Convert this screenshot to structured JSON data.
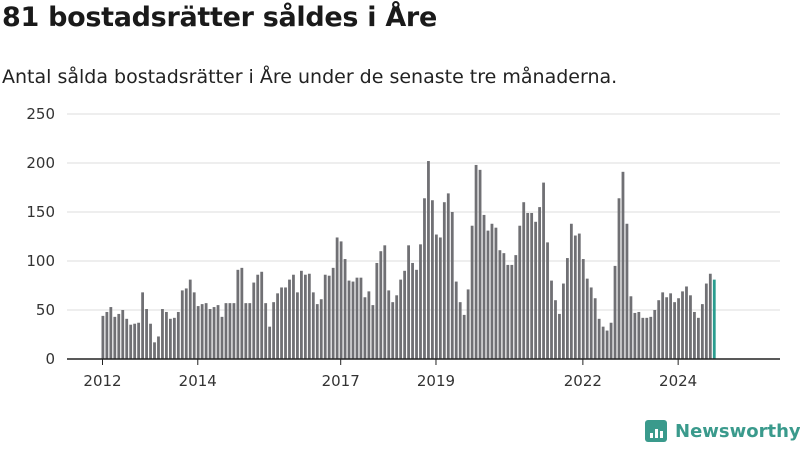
{
  "title": "81 bostadsrätter såldes i Åre",
  "subtitle": "Antal sålda bostadsrätter i Åre under de senaste tre månaderna.",
  "brand": {
    "name": "Newsworthy",
    "logo_icon": "bar-chart-logo-icon"
  },
  "colors": {
    "bar": "#707074",
    "highlight": "#2a9d8f",
    "grid": "#dddddd",
    "axis": "#222222",
    "brand": "#3a9a8c"
  },
  "chart_data": {
    "type": "bar",
    "title": "81 bostadsrätter såldes i Åre",
    "xlabel": "",
    "ylabel": "",
    "ylim": [
      0,
      250
    ],
    "yticks": [
      "0",
      "50",
      "100",
      "150",
      "200",
      "250"
    ],
    "xtick_labels": [
      "2012",
      "2014",
      "2017",
      "2019",
      "2022",
      "2024"
    ],
    "grid": true,
    "annotation": {
      "text": "81",
      "index": 163
    },
    "values": [
      44,
      48,
      53,
      43,
      46,
      50,
      41,
      35,
      36,
      37,
      68,
      51,
      36,
      17,
      23,
      51,
      48,
      41,
      42,
      48,
      70,
      72,
      81,
      68,
      54,
      56,
      57,
      51,
      53,
      55,
      43,
      57,
      57,
      57,
      91,
      93,
      57,
      57,
      78,
      86,
      89,
      57,
      33,
      58,
      67,
      73,
      73,
      81,
      86,
      68,
      90,
      86,
      87,
      68,
      56,
      61,
      86,
      85,
      93,
      124,
      120,
      102,
      80,
      79,
      83,
      83,
      63,
      69,
      55,
      98,
      110,
      116,
      70,
      58,
      65,
      81,
      90,
      116,
      98,
      91,
      117,
      164,
      202,
      162,
      127,
      124,
      160,
      169,
      150,
      79,
      58,
      45,
      71,
      136,
      198,
      193,
      147,
      131,
      138,
      134,
      111,
      108,
      96,
      96,
      106,
      136,
      160,
      149,
      149,
      140,
      155,
      180,
      119,
      80,
      60,
      46,
      77,
      103,
      138,
      126,
      128,
      102,
      82,
      73,
      62,
      41,
      33,
      29,
      37,
      95,
      164,
      191,
      138,
      64,
      47,
      48,
      42,
      42,
      43,
      50,
      60,
      68,
      63,
      67,
      58,
      62,
      69,
      74,
      65,
      48,
      42,
      56,
      77,
      87,
      81
    ]
  }
}
